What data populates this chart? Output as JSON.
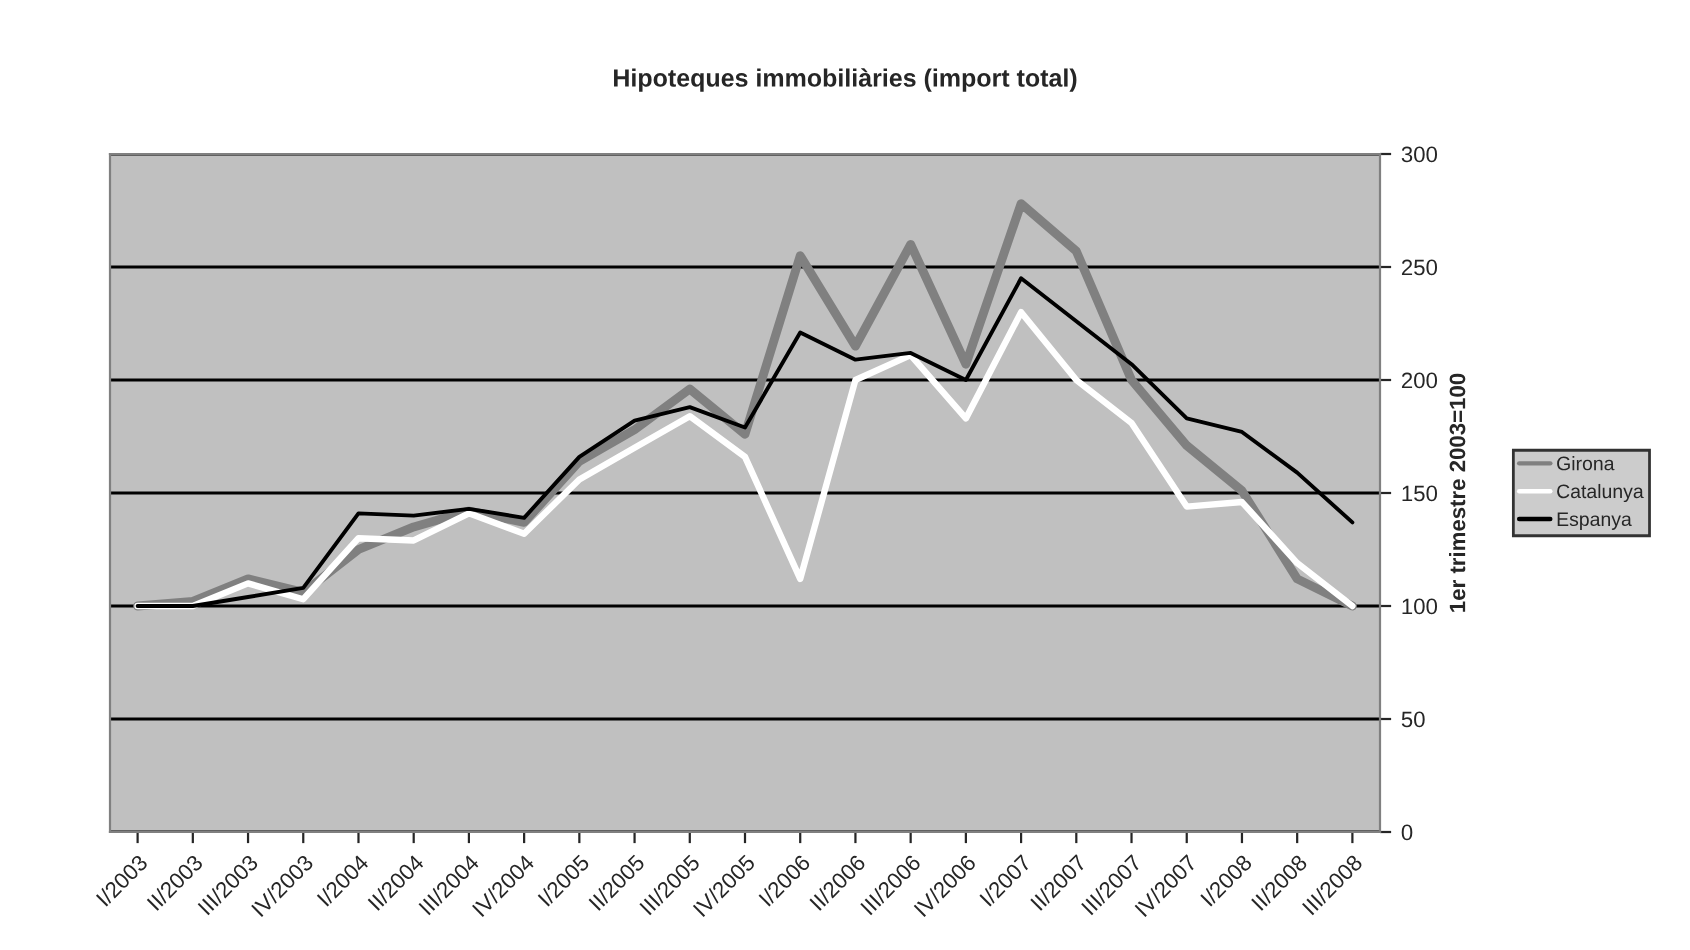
{
  "chart_data": {
    "type": "line",
    "title": "Hipoteques immobiliàries (import total)",
    "ylabel": "1er trimestre 2003=100",
    "categories": [
      "I/2003",
      "II/2003",
      "III/2003",
      "IV/2003",
      "I/2004",
      "II/2004",
      "III/2004",
      "IV/2004",
      "I/2005",
      "II/2005",
      "III/2005",
      "IV/2005",
      "I/2006",
      "II/2006",
      "III/2006",
      "IV/2006",
      "I/2007",
      "II/2007",
      "III/2007",
      "IV/2007",
      "I/2008",
      "II/2008",
      "III/2008"
    ],
    "series": [
      {
        "name": "Girona",
        "color": "#808080",
        "values": [
          100,
          102,
          112,
          106,
          125,
          135,
          142,
          137,
          164,
          178,
          196,
          176,
          255,
          215,
          260,
          207,
          278,
          257,
          200,
          171,
          151,
          112,
          100
        ]
      },
      {
        "name": "Catalunya",
        "color": "#ffffff",
        "values": [
          100,
          100,
          110,
          103,
          130,
          129,
          141,
          132,
          156,
          170,
          184,
          166,
          112,
          200,
          211,
          183,
          230,
          200,
          181,
          144,
          146,
          119,
          100
        ]
      },
      {
        "name": "Espanya",
        "color": "#000000",
        "values": [
          100,
          100,
          104,
          108,
          141,
          140,
          143,
          139,
          166,
          182,
          188,
          179,
          221,
          209,
          212,
          200,
          245,
          226,
          207,
          183,
          177,
          159,
          137
        ]
      }
    ],
    "ylim": [
      0,
      300
    ],
    "yticks": [
      0,
      50,
      100,
      150,
      200,
      250,
      300
    ],
    "grid": "y",
    "legend": "right",
    "marker": "none",
    "line_style": "solid"
  }
}
